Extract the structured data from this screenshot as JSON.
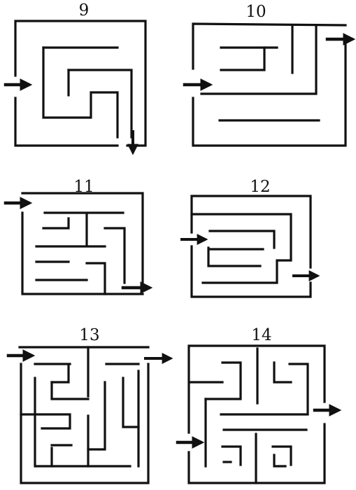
{
  "page": {
    "ink_color": "#111111",
    "paper_color": "#ffffff"
  },
  "mazes": [
    {
      "title": "9"
    },
    {
      "title": "10"
    },
    {
      "title": "11"
    },
    {
      "title": "12"
    },
    {
      "title": "13"
    },
    {
      "title": "14"
    }
  ]
}
